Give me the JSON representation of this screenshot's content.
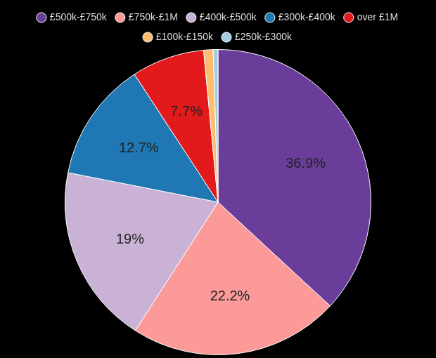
{
  "chart_data": {
    "type": "pie",
    "categories": [
      "£500k-£750k",
      "£750k-£1M",
      "£400k-£500k",
      "£300k-£400k",
      "over £1M",
      "£100k-£150k",
      "£250k-£300k"
    ],
    "values": [
      36.9,
      22.2,
      19,
      12.7,
      7.7,
      1.0,
      0.5
    ],
    "value_labels": [
      "36.9%",
      "22.2%",
      "19%",
      "12.7%",
      "7.7%",
      null,
      null
    ],
    "colors": [
      "#6a3d9a",
      "#fb9a99",
      "#cab2d6",
      "#1f78b4",
      "#e31a1c",
      "#fdbf6f",
      "#a6cee3"
    ],
    "data_labels": true,
    "legend": "top"
  }
}
